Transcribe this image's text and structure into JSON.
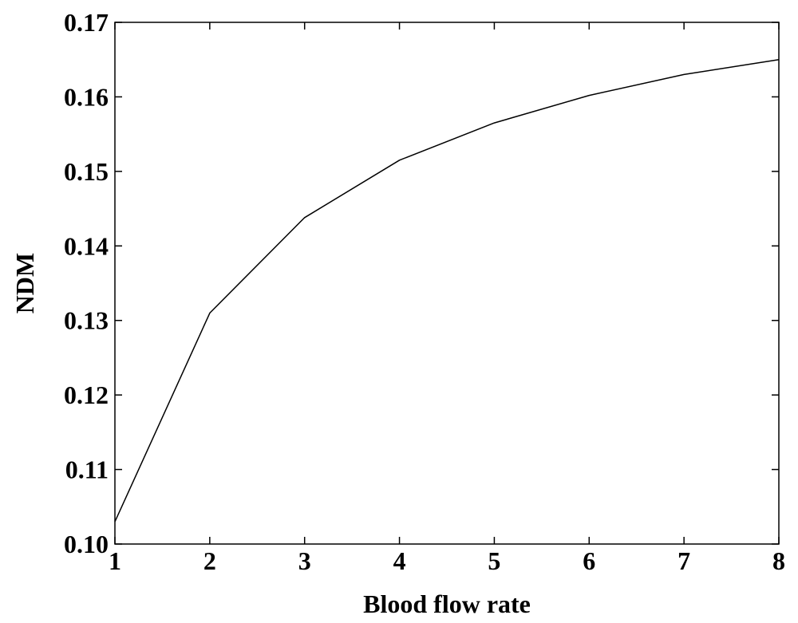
{
  "chart_data": {
    "type": "line",
    "title": "",
    "xlabel": "Blood flow rate",
    "ylabel": "NDM",
    "xlim": [
      1,
      8
    ],
    "ylim": [
      0.1,
      0.17
    ],
    "grid": false,
    "x_ticks": [
      1,
      2,
      3,
      4,
      5,
      6,
      7,
      8
    ],
    "x_tick_labels": [
      "1",
      "2",
      "3",
      "4",
      "5",
      "6",
      "7",
      "8"
    ],
    "y_ticks": [
      0.1,
      0.11,
      0.12,
      0.13,
      0.14,
      0.15,
      0.16,
      0.17
    ],
    "y_tick_labels": [
      "0.10",
      "0.11",
      "0.12",
      "0.13",
      "0.14",
      "0.15",
      "0.16",
      "0.17"
    ],
    "series": [
      {
        "x": [
          1,
          2,
          3,
          4,
          5,
          6,
          7,
          8
        ],
        "y": [
          0.103,
          0.131,
          0.1438,
          0.1515,
          0.1565,
          0.1602,
          0.163,
          0.165
        ],
        "color": "#000000"
      }
    ]
  }
}
